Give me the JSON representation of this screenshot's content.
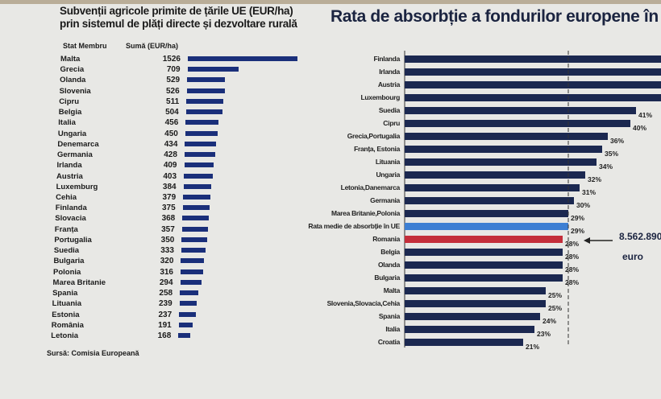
{
  "chart_data": [
    {
      "type": "bar",
      "orientation": "horizontal",
      "title": "Subvenții agricole primite de țările UE (EUR/ha) prin sistemul de plăți directe și dezvoltare rurală",
      "title_lines": [
        "Subvenții agricole primite de țările UE (EUR/ha)",
        "prin sistemul de plăți directe și dezvoltare rurală"
      ],
      "column_headers": [
        "Stat Membru",
        "Sumă (EUR/ha)"
      ],
      "categories": [
        "Malta",
        "Grecia",
        "Olanda",
        "Slovenia",
        "Cipru",
        "Belgia",
        "Italia",
        "Ungaria",
        "Denemarca",
        "Germania",
        "Irlanda",
        "Austria",
        "Luxemburg",
        "Cehia",
        "Finlanda",
        "Slovacia",
        "Franța",
        "Portugalia",
        "Suedia",
        "Bulgaria",
        "Polonia",
        "Marea Britanie",
        "Spania",
        "Lituania",
        "Estonia",
        "România",
        "Letonia"
      ],
      "values": [
        1526,
        709,
        529,
        526,
        511,
        504,
        456,
        450,
        434,
        428,
        409,
        403,
        384,
        379,
        375,
        368,
        357,
        350,
        333,
        320,
        316,
        294,
        258,
        239,
        237,
        191,
        168
      ],
      "bar_color": "#1a2f7a",
      "source": "Sursă: Comisia Europeană"
    },
    {
      "type": "bar",
      "orientation": "horizontal",
      "title": "Rata de absorbție a fondurilor europene în",
      "categories": [
        "Finlanda",
        "Irlanda",
        "Austria",
        "Luxembourg",
        "Suedia",
        "Cipru",
        "Grecia,Portugalia",
        "Franța, Estonia",
        "Lituania",
        "Ungaria",
        "Letonia,Danemarca",
        "Germania",
        "Marea Britanie,Polonia",
        "Rata medie de absorbție în UE",
        "Romania",
        "Belgia",
        "Olanda",
        "Bulgaria",
        "Malta",
        "Slovenia,Slovacia,Cehia",
        "Spania",
        "Italia",
        "Croatia"
      ],
      "values": [
        null,
        null,
        null,
        null,
        41,
        40,
        36,
        35,
        34,
        32,
        31,
        30,
        29,
        29,
        28,
        28,
        28,
        28,
        25,
        25,
        24,
        23,
        21
      ],
      "labels": [
        "",
        "",
        "",
        "",
        "41%",
        "40%",
        "36%",
        "35%",
        "34%",
        "32%",
        "31%",
        "30%",
        "29%",
        "29%",
        "28%",
        "28%",
        "28%",
        "28%",
        "25%",
        "25%",
        "24%",
        "23%",
        "21%"
      ],
      "unit": "%",
      "reference_line": 29,
      "colors": {
        "default": "#1b2850",
        "average": "#3d7fd3",
        "romania": "#c42e3a"
      },
      "annotation": {
        "value": "8.562.890",
        "unit": "euro",
        "points_to": "Romania"
      }
    }
  ]
}
